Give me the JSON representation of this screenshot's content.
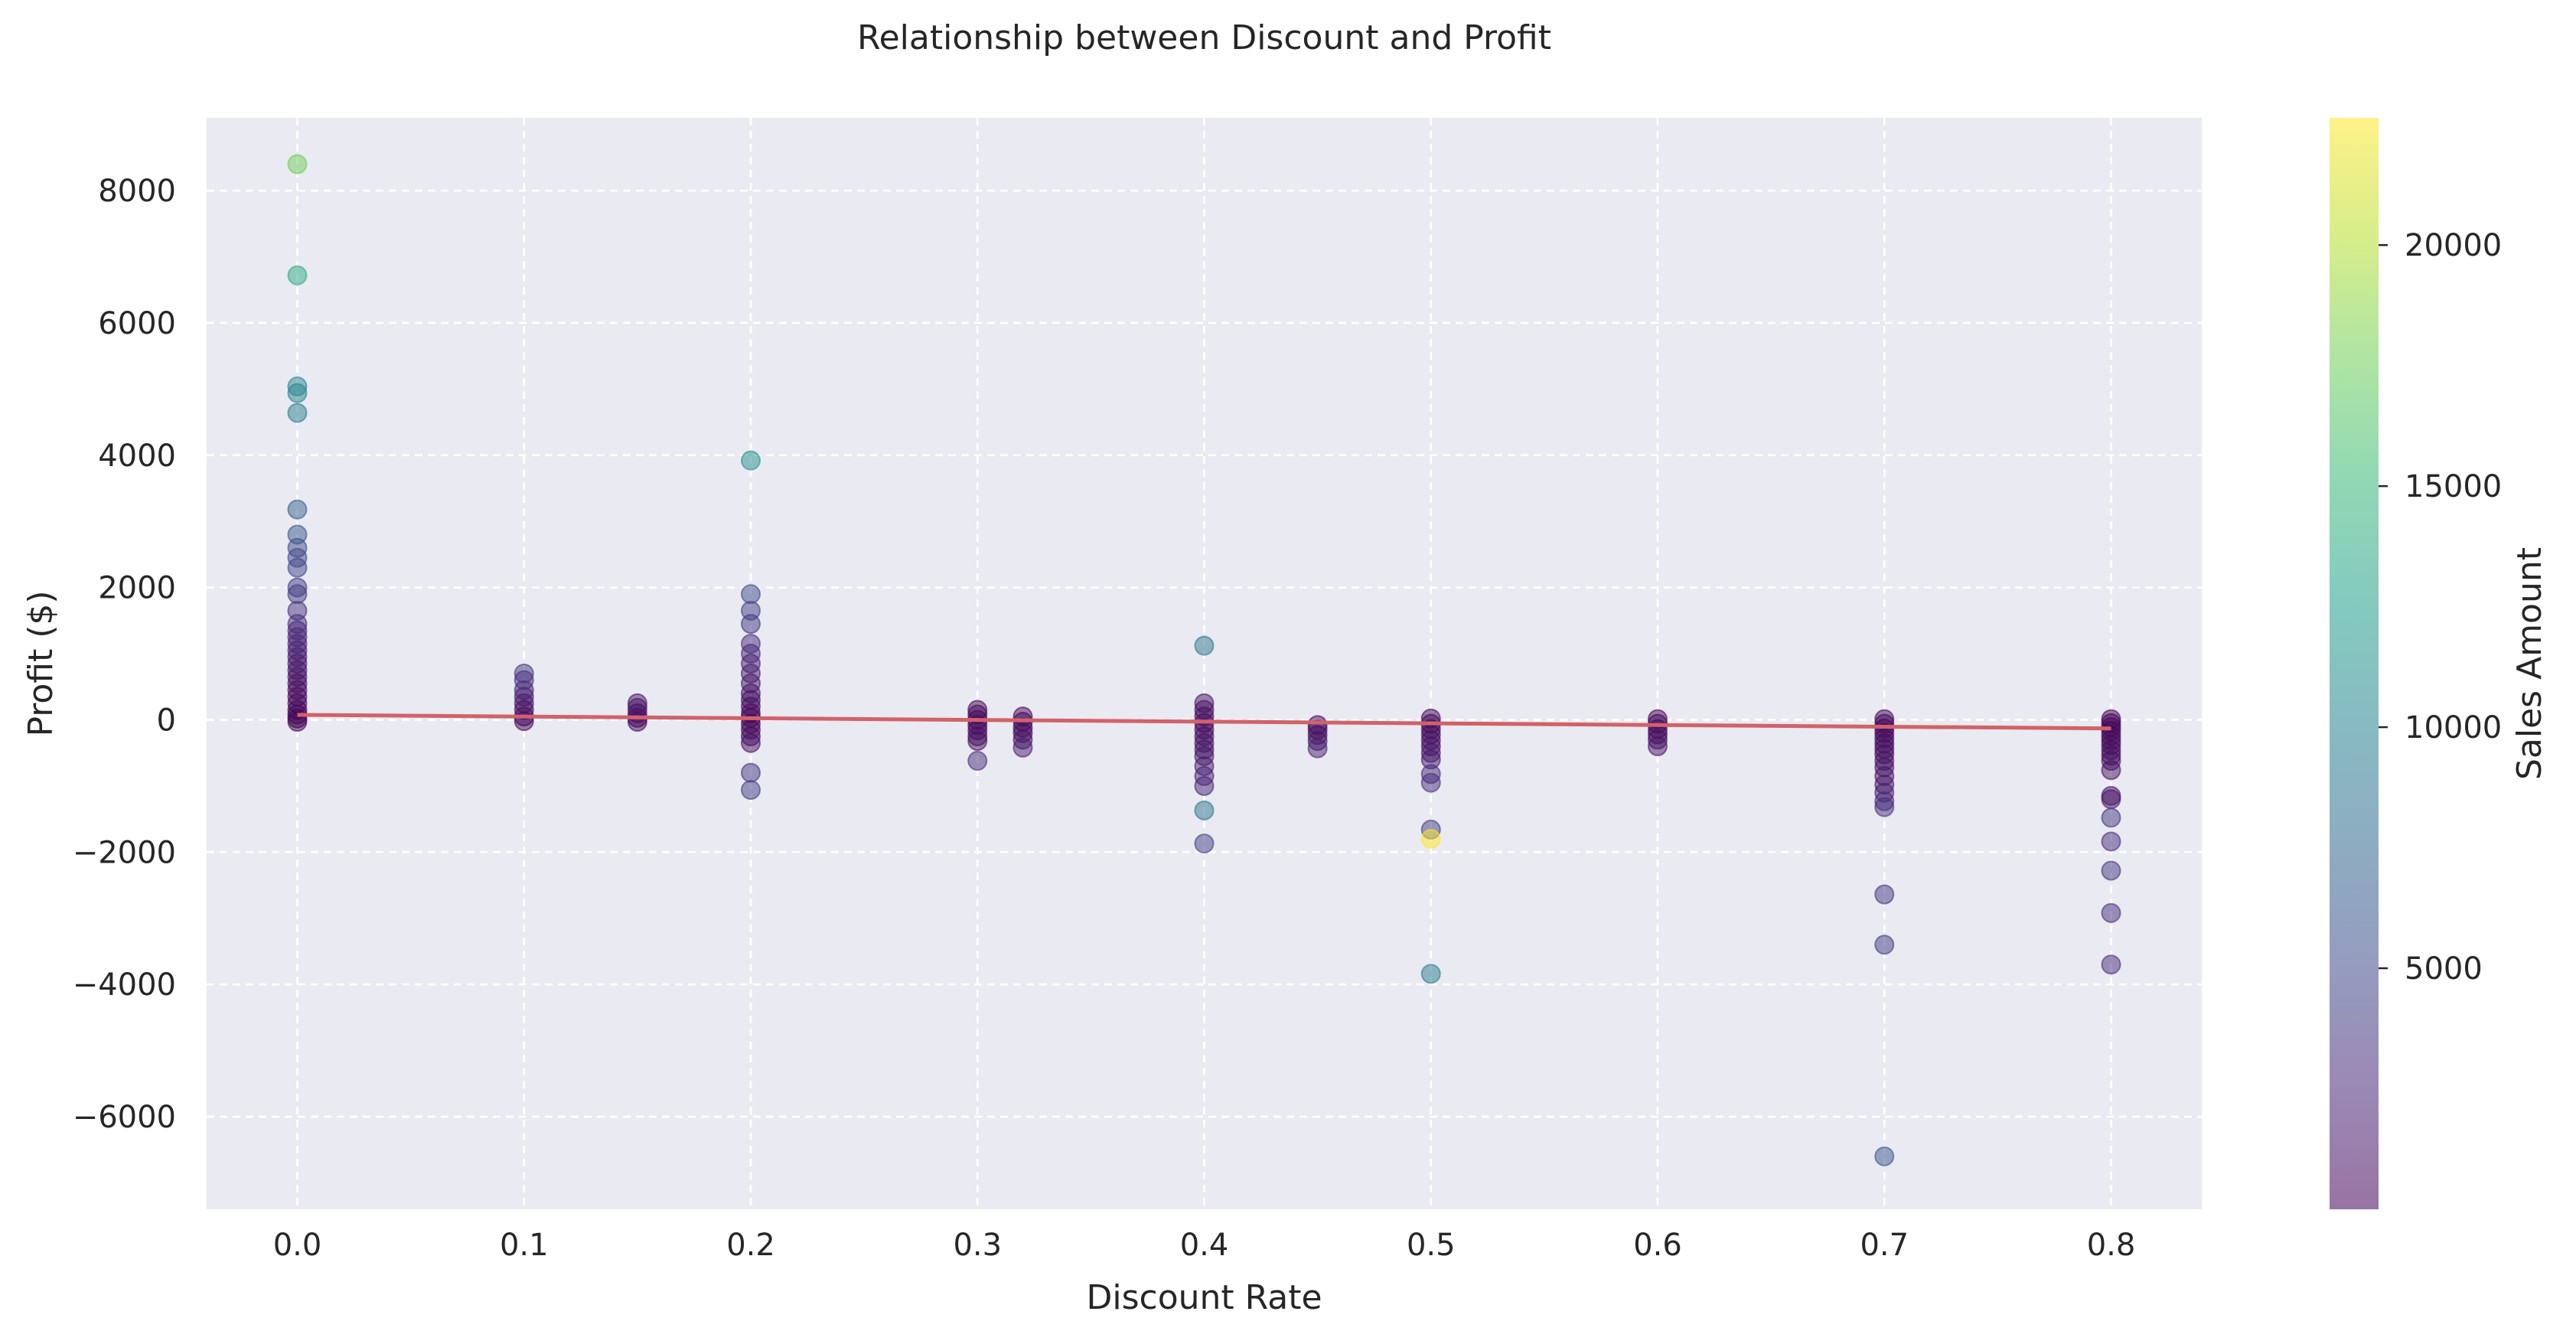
{
  "chart_data": {
    "type": "scatter",
    "title": "Relationship between Discount and Profit",
    "xlabel": "Discount Rate",
    "ylabel": "Profit ($)",
    "xlim": [
      -0.04,
      0.84
    ],
    "ylim": [
      -7400,
      9100
    ],
    "xticks": [
      0.0,
      0.1,
      0.2,
      0.3,
      0.4,
      0.5,
      0.6,
      0.7,
      0.8
    ],
    "xtick_labels": [
      "0.0",
      "0.1",
      "0.2",
      "0.3",
      "0.4",
      "0.5",
      "0.6",
      "0.7",
      "0.8"
    ],
    "yticks": [
      -6000,
      -4000,
      -2000,
      0,
      2000,
      4000,
      6000,
      8000
    ],
    "ytick_labels": [
      "−6000",
      "−4000",
      "−2000",
      "0",
      "2000",
      "4000",
      "6000",
      "8000"
    ],
    "grid": true,
    "colorbar": {
      "label": "Sales Amount",
      "colormap": "viridis",
      "range": [
        0,
        22638
      ],
      "ticks": [
        5000,
        10000,
        15000,
        20000
      ],
      "tick_labels": [
        "5000",
        "10000",
        "15000",
        "20000"
      ]
    },
    "trendline": {
      "color": "#d1626a",
      "points": [
        [
          0.0,
          75
        ],
        [
          0.8,
          -130
        ]
      ]
    },
    "point_alpha": 0.5,
    "series": [
      {
        "points": [
          [
            0.0,
            8400,
            17500
          ],
          [
            0.0,
            6720,
            14000
          ],
          [
            0.0,
            5040,
            10500
          ],
          [
            0.0,
            4940,
            10200
          ],
          [
            0.0,
            4640,
            9600
          ],
          [
            0.0,
            3180,
            6800
          ],
          [
            0.0,
            2800,
            6000
          ],
          [
            0.0,
            2600,
            5200
          ],
          [
            0.0,
            2450,
            4800
          ],
          [
            0.0,
            2300,
            4500
          ],
          [
            0.0,
            2000,
            4000
          ],
          [
            0.0,
            1900,
            3800
          ],
          [
            0.0,
            1650,
            3200
          ],
          [
            0.0,
            1450,
            2800
          ],
          [
            0.0,
            1350,
            2500
          ],
          [
            0.0,
            1250,
            2300
          ],
          [
            0.0,
            1150,
            2000
          ],
          [
            0.0,
            1050,
            1800
          ],
          [
            0.0,
            950,
            1600
          ],
          [
            0.0,
            850,
            1400
          ],
          [
            0.0,
            750,
            1200
          ],
          [
            0.0,
            650,
            1000
          ],
          [
            0.0,
            550,
            800
          ],
          [
            0.0,
            450,
            600
          ],
          [
            0.0,
            350,
            400
          ],
          [
            0.0,
            250,
            300
          ],
          [
            0.0,
            150,
            200
          ],
          [
            0.0,
            80,
            100
          ],
          [
            0.0,
            20,
            50
          ],
          [
            0.0,
            -30,
            30
          ],
          [
            0.1,
            700,
            3500
          ],
          [
            0.1,
            600,
            3000
          ],
          [
            0.1,
            450,
            2000
          ],
          [
            0.1,
            350,
            1500
          ],
          [
            0.1,
            250,
            1000
          ],
          [
            0.1,
            150,
            600
          ],
          [
            0.1,
            50,
            300
          ],
          [
            0.1,
            -20,
            100
          ],
          [
            0.15,
            250,
            1200
          ],
          [
            0.15,
            180,
            900
          ],
          [
            0.15,
            100,
            500
          ],
          [
            0.15,
            30,
            200
          ],
          [
            0.15,
            -30,
            100
          ],
          [
            0.2,
            3920,
            11500
          ],
          [
            0.2,
            1900,
            5000
          ],
          [
            0.2,
            1650,
            4200
          ],
          [
            0.2,
            1450,
            3500
          ],
          [
            0.2,
            1150,
            2800
          ],
          [
            0.2,
            1000,
            2400
          ],
          [
            0.2,
            850,
            2000
          ],
          [
            0.2,
            700,
            1700
          ],
          [
            0.2,
            550,
            1300
          ],
          [
            0.2,
            400,
            1000
          ],
          [
            0.2,
            300,
            800
          ],
          [
            0.2,
            200,
            600
          ],
          [
            0.2,
            100,
            400
          ],
          [
            0.2,
            30,
            200
          ],
          [
            0.2,
            -60,
            200
          ],
          [
            0.2,
            -150,
            400
          ],
          [
            0.2,
            -250,
            600
          ],
          [
            0.2,
            -350,
            900
          ],
          [
            0.2,
            -800,
            3500
          ],
          [
            0.2,
            -1060,
            4000
          ],
          [
            0.3,
            150,
            500
          ],
          [
            0.3,
            80,
            300
          ],
          [
            0.3,
            0,
            200
          ],
          [
            0.3,
            -80,
            300
          ],
          [
            0.3,
            -160,
            500
          ],
          [
            0.3,
            -250,
            800
          ],
          [
            0.3,
            -320,
            1000
          ],
          [
            0.3,
            -620,
            3000
          ],
          [
            0.32,
            50,
            300
          ],
          [
            0.32,
            -30,
            300
          ],
          [
            0.32,
            -120,
            400
          ],
          [
            0.32,
            -200,
            700
          ],
          [
            0.32,
            -300,
            900
          ],
          [
            0.32,
            -420,
            1800
          ],
          [
            0.4,
            1120,
            9000
          ],
          [
            0.4,
            250,
            1000
          ],
          [
            0.4,
            150,
            800
          ],
          [
            0.4,
            50,
            500
          ],
          [
            0.4,
            -50,
            400
          ],
          [
            0.4,
            -150,
            600
          ],
          [
            0.4,
            -250,
            800
          ],
          [
            0.4,
            -350,
            1000
          ],
          [
            0.4,
            -450,
            1200
          ],
          [
            0.4,
            -550,
            1400
          ],
          [
            0.4,
            -700,
            1800
          ],
          [
            0.4,
            -850,
            2000
          ],
          [
            0.4,
            -1000,
            2200
          ],
          [
            0.4,
            -1370,
            9000
          ],
          [
            0.4,
            -1870,
            4200
          ],
          [
            0.45,
            -80,
            400
          ],
          [
            0.45,
            -150,
            600
          ],
          [
            0.45,
            -230,
            900
          ],
          [
            0.45,
            -320,
            1200
          ],
          [
            0.45,
            -430,
            2000
          ],
          [
            0.5,
            20,
            300
          ],
          [
            0.5,
            -60,
            300
          ],
          [
            0.5,
            -140,
            500
          ],
          [
            0.5,
            -220,
            700
          ],
          [
            0.5,
            -310,
            900
          ],
          [
            0.5,
            -400,
            1100
          ],
          [
            0.5,
            -500,
            1300
          ],
          [
            0.5,
            -600,
            1500
          ],
          [
            0.5,
            -820,
            2500
          ],
          [
            0.5,
            -950,
            3000
          ],
          [
            0.5,
            -1660,
            4200
          ],
          [
            0.5,
            -1800,
            22638
          ],
          [
            0.5,
            -3840,
            9500
          ],
          [
            0.6,
            10,
            300
          ],
          [
            0.6,
            -60,
            400
          ],
          [
            0.6,
            -140,
            500
          ],
          [
            0.6,
            -220,
            700
          ],
          [
            0.6,
            -300,
            900
          ],
          [
            0.6,
            -400,
            1200
          ],
          [
            0.7,
            10,
            300
          ],
          [
            0.7,
            -60,
            300
          ],
          [
            0.7,
            -130,
            400
          ],
          [
            0.7,
            -200,
            500
          ],
          [
            0.7,
            -280,
            600
          ],
          [
            0.7,
            -360,
            700
          ],
          [
            0.7,
            -440,
            800
          ],
          [
            0.7,
            -520,
            900
          ],
          [
            0.7,
            -620,
            1000
          ],
          [
            0.7,
            -720,
            1100
          ],
          [
            0.7,
            -850,
            1300
          ],
          [
            0.7,
            -980,
            1500
          ],
          [
            0.7,
            -1100,
            1800
          ],
          [
            0.7,
            -1230,
            2500
          ],
          [
            0.7,
            -1320,
            3000
          ],
          [
            0.7,
            -2640,
            3500
          ],
          [
            0.7,
            -3400,
            4000
          ],
          [
            0.7,
            -6600,
            6000
          ],
          [
            0.8,
            10,
            200
          ],
          [
            0.8,
            -50,
            200
          ],
          [
            0.8,
            -110,
            300
          ],
          [
            0.8,
            -170,
            300
          ],
          [
            0.8,
            -240,
            400
          ],
          [
            0.8,
            -310,
            500
          ],
          [
            0.8,
            -380,
            600
          ],
          [
            0.8,
            -460,
            700
          ],
          [
            0.8,
            -540,
            800
          ],
          [
            0.8,
            -620,
            900
          ],
          [
            0.8,
            -760,
            1000
          ],
          [
            0.8,
            -1150,
            1100
          ],
          [
            0.8,
            -1200,
            1200
          ],
          [
            0.8,
            -1480,
            3500
          ],
          [
            0.8,
            -1840,
            3000
          ],
          [
            0.8,
            -2280,
            3500
          ],
          [
            0.8,
            -2920,
            3000
          ],
          [
            0.8,
            -3700,
            3000
          ]
        ]
      }
    ]
  }
}
